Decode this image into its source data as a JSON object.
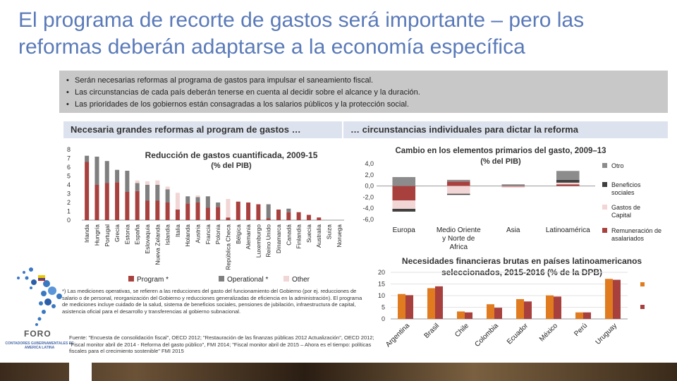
{
  "title": "El programa de recorte de gastos será importante – pero las reformas deberán adaptarse a la economía específica",
  "bullets": [
    "Serán necesarias reformas al programa de gastos para impulsar el saneamiento fiscal.",
    "Las circunstancias de cada país deberán tenerse en cuenta al decidir sobre el alcance y la duración.",
    "Las prioridades de los gobiernos están consagradas a los salarios públicos y la protección social."
  ],
  "header_left": "Necesaria grandes reformas al program de gastos …",
  "header_right": "… circunstancias individuales para dictar la reforma",
  "footnote": "*) Las mediciones operativas, se refieren a las reducciones del gasto del funcionamiento del Gobierno (por ej. reducciones de salario o de personal, reorganización del Gobierno y reducciones generalizadas de eficiencia en la administración). El programa de mediciones incluye cuidado de la salud, sistema de beneficios sociales, pensiones de jubilación, infraestructura de capital, asistencia oficial para el desarrollo y transferencias al gobierno subnacional.",
  "source": "Fuente: \"Encuesta de consolidación fiscal\", OECD 2012; \"Restauración de las finanzas públicas 2012 Actualización\", OECD 2012; \"Fiscal monitor abril de 2014 - Reforma del gasto público\", FMI 2014; \"Fiscal monitor abril de 2015 – Ahora es el tiempo: políticas fiscales para el crecimiento sostenible\" FMI 2015",
  "logo": {
    "name": "FORO",
    "subtitle": "CONTADORES GUBERNAMENTALES DE AMERICA LATINA"
  },
  "colors": {
    "title": "#5a7ab8",
    "program": "#a8403e",
    "operational": "#7f7f7f",
    "other": "#f2d5d5",
    "beneficios": "#404040",
    "orange": "#e07b20",
    "red": "#a8403e"
  },
  "chart_data": [
    {
      "type": "bar",
      "stacked": true,
      "title": "Reducción de gastos cuantificada, 2009-15",
      "subtitle": "(% del PIB)",
      "ylim": [
        0,
        8
      ],
      "yticks": [
        0,
        1,
        2,
        3,
        4,
        5,
        6,
        7,
        8
      ],
      "legend": "bottom",
      "categories": [
        "Irlanda",
        "Hungría",
        "Portugal",
        "Grecia",
        "Estonia",
        "España",
        "Eslovaquia",
        "Nueva Zelanda",
        "Islandia",
        "Italia",
        "Holanda",
        "Austria",
        "Francia",
        "Polonia",
        "República Checa",
        "Bélgica",
        "Alemania",
        "Luxemburgo",
        "Reino Unido",
        "Dinamarca",
        "Canadá",
        "Finlandia",
        "Suecia",
        "Australia",
        "Suiza",
        "Noruega"
      ],
      "series": [
        {
          "name": "Program *",
          "values": [
            6.6,
            4.0,
            4.2,
            4.3,
            3.2,
            3.3,
            2.2,
            2.2,
            2.0,
            1.2,
            1.9,
            2.0,
            1.4,
            1.5,
            0.3,
            2.1,
            2.0,
            1.8,
            0.2,
            1.2,
            0.9,
            0.9,
            0.6,
            0.3,
            0.0,
            0.0
          ]
        },
        {
          "name": "Operational *",
          "values": [
            0.7,
            3.2,
            2.5,
            1.4,
            2.4,
            0.9,
            1.8,
            1.8,
            1.5,
            0.0,
            0.8,
            0.6,
            1.3,
            0.5,
            0.0,
            0.0,
            0.0,
            0.0,
            1.6,
            0.0,
            0.4,
            0.0,
            0.0,
            0.0,
            0.0,
            0.0
          ]
        },
        {
          "name": "Other",
          "values": [
            0.0,
            0.0,
            0.0,
            0.0,
            0.0,
            0.3,
            0.4,
            0.5,
            0.3,
            1.9,
            0.0,
            0.2,
            0.0,
            0.0,
            2.1,
            0.0,
            0.0,
            0.0,
            0.0,
            0.0,
            0.0,
            0.0,
            0.0,
            0.0,
            0.0,
            0.0
          ]
        }
      ]
    },
    {
      "type": "bar",
      "stacked": true,
      "title": "Cambio en los elementos primarios del gasto, 2009–13",
      "subtitle": "(% del PIB)",
      "ylim": [
        -6,
        4
      ],
      "yticks": [
        "4,0",
        "2,0",
        "0,0",
        "-2,0",
        "-4,0",
        "-6,0"
      ],
      "yticks_values": [
        4,
        2,
        0,
        -2,
        -4,
        -6
      ],
      "legend": "right",
      "categories": [
        "Europa",
        "Medio Oriente y Norte de Africa",
        "Asia",
        "Latinoamérica"
      ],
      "series": [
        {
          "name": "Otro",
          "values": [
            1.6,
            0.3,
            0.3,
            1.6
          ]
        },
        {
          "name": "Beneficios sociales",
          "values": [
            -0.5,
            -0.2,
            0.0,
            0.5
          ]
        },
        {
          "name": "Gastos de Capital",
          "values": [
            -1.5,
            -1.4,
            -0.2,
            0.3
          ]
        },
        {
          "name": "Remuneración de asalariados",
          "values": [
            -2.6,
            0.8,
            -0.1,
            0.3
          ]
        }
      ]
    },
    {
      "type": "bar",
      "title": "Necesidades financieras brutas en países latinoamericanos seleccionados, 2015-2016 (% de la DPB)",
      "ylim": [
        0,
        20
      ],
      "yticks": [
        0,
        5,
        10,
        15,
        20
      ],
      "categories": [
        "Argentina",
        "Brasil",
        "Chile",
        "Colombia",
        "Ecuador",
        "México",
        "Perú",
        "Uruguay"
      ],
      "series": [
        {
          "values": [
            10.7,
            13.2,
            3.2,
            6.3,
            8.5,
            10.1,
            2.8,
            17.2
          ]
        },
        {
          "values": [
            10.2,
            14.0,
            2.8,
            4.8,
            7.5,
            9.6,
            2.8,
            16.8
          ]
        }
      ]
    }
  ]
}
